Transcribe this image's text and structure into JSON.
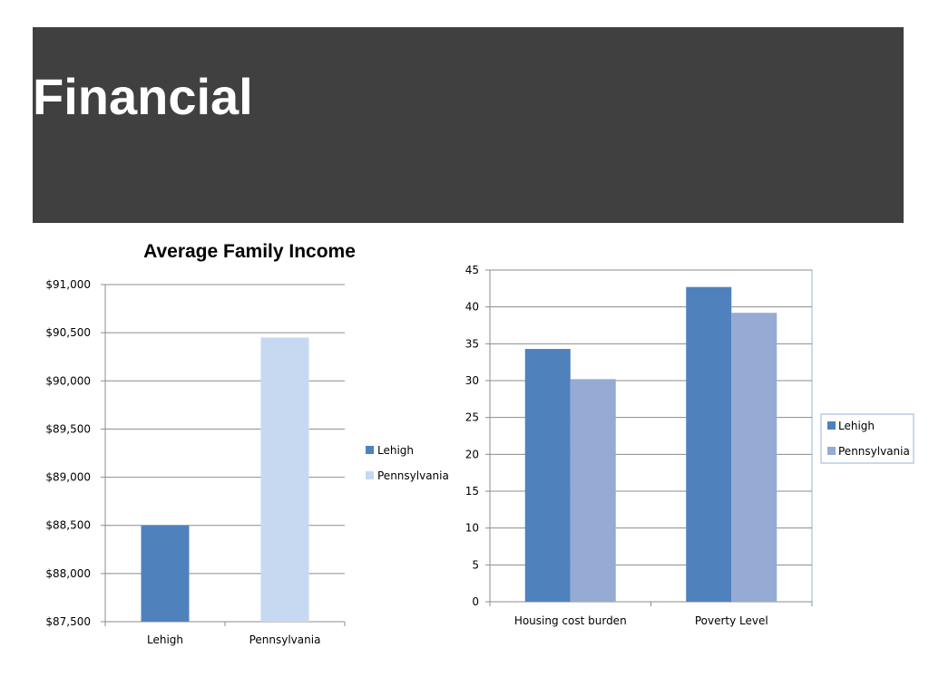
{
  "slide": {
    "title": "Financial"
  },
  "chart_data": [
    {
      "type": "bar",
      "title": "Average Family Income",
      "categories": [
        "Lehigh",
        "Pennsylvania"
      ],
      "values": [
        88500,
        90450
      ],
      "colors": [
        "#4f81bd",
        "#c6d9f1"
      ],
      "xlabel": "",
      "ylabel": "",
      "ylim": [
        87500,
        91000
      ],
      "ticks": [
        87500,
        88000,
        88500,
        89000,
        89500,
        90000,
        90500,
        91000
      ],
      "tick_labels": [
        "$87,500",
        "$88,000",
        "$88,500",
        "$89,000",
        "$89,500",
        "$90,000",
        "$90,500",
        "$91,000"
      ],
      "legend": [
        "Lehigh",
        "Pennsylvania"
      ],
      "legend_position": "right",
      "grid": true
    },
    {
      "type": "bar",
      "title": "",
      "categories": [
        "Housing cost burden",
        "Poverty Level"
      ],
      "series": [
        {
          "name": "Lehigh",
          "values": [
            34.3,
            42.7
          ],
          "color": "#4f81bd"
        },
        {
          "name": "Pennsylvania",
          "values": [
            30.2,
            39.2
          ],
          "color": "#95abd3"
        }
      ],
      "xlabel": "",
      "ylabel": "",
      "ylim": [
        0,
        45
      ],
      "ticks": [
        0,
        5,
        10,
        15,
        20,
        25,
        30,
        35,
        40,
        45
      ],
      "tick_labels": [
        "0",
        "5",
        "10",
        "15",
        "20",
        "25",
        "30",
        "35",
        "40",
        "45"
      ],
      "legend_position": "right",
      "grid": true
    }
  ]
}
